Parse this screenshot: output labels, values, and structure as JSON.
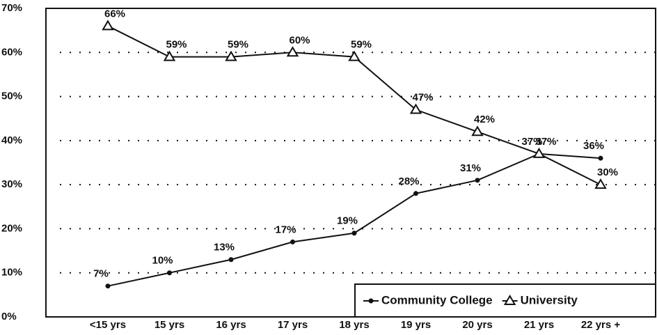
{
  "chart_data": {
    "type": "line",
    "categories": [
      "<15 yrs",
      "15 yrs",
      "16 yrs",
      "17 yrs",
      "18 yrs",
      "19 yrs",
      "20 yrs",
      "21 yrs",
      "22 yrs +"
    ],
    "series": [
      {
        "name": "Community College",
        "color": "#111111",
        "marker": "dot",
        "values": [
          7,
          10,
          13,
          17,
          19,
          28,
          31,
          37,
          36
        ],
        "value_labels": [
          "7%",
          "10%",
          "13%",
          "17%",
          "19%",
          "28%",
          "31%",
          "37%",
          "36%"
        ]
      },
      {
        "name": "University",
        "color": "#111111",
        "marker": "triangle",
        "values": [
          66,
          59,
          59,
          60,
          59,
          47,
          42,
          37,
          30
        ],
        "value_labels": [
          "66%",
          "59%",
          "59%",
          "60%",
          "59%",
          "47%",
          "42%",
          "37%",
          "30%"
        ]
      }
    ],
    "ylim": [
      0,
      70
    ],
    "yticks": [
      {
        "value": 0,
        "label": "0%"
      },
      {
        "value": 10,
        "label": "10%"
      },
      {
        "value": 20,
        "label": "20%"
      },
      {
        "value": 30,
        "label": "30%"
      },
      {
        "value": 40,
        "label": "40%"
      },
      {
        "value": 50,
        "label": "50%"
      },
      {
        "value": 60,
        "label": "60%"
      },
      {
        "value": 70,
        "label": "70%"
      }
    ],
    "grid": true,
    "legend": "bottom-right"
  }
}
